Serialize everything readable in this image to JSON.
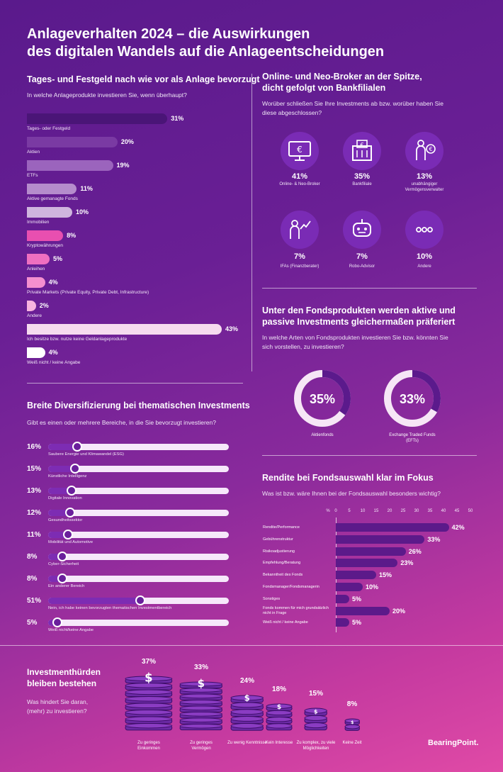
{
  "title_line1": "Anlageverhalten 2024 – die Auswirkungen",
  "title_line2": "des digitalen Wandels auf die Anlageentscheidungen",
  "s1": {
    "title": "Tages- und Festgeld nach wie vor als Anlage bevorzugt",
    "question": "In welche Anlageprodukte investieren Sie, wenn überhaupt?"
  },
  "s2": {
    "title_line1": "Online- und Neo-Broker an der Spitze,",
    "title_line2": "dicht gefolgt von Bankfilialen",
    "question_line1": "Worüber schließen Sie Ihre Investments ab bzw. worüber haben Sie",
    "question_line2": "diese abgeschlossen?"
  },
  "s3": {
    "title_line1": "Unter den Fondsprodukten werden aktive und",
    "title_line2": "passive Investments gleichermaßen präferiert",
    "question_line1": "In welche Arten von Fondsprodukten investieren Sie bzw. könnten Sie",
    "question_line2": "sich vorstellen, zu investieren?"
  },
  "s4": {
    "title": "Breite Diversifizierung bei thematischen Investments",
    "question": "Gibt es einen oder mehrere Bereiche, in die Sie bevorzugt investieren?"
  },
  "s5": {
    "title": "Rendite bei Fondsauswahl klar im Fokus",
    "question": "Was ist bzw. wäre Ihnen bei der Fondsauswahl besonders wichtig?"
  },
  "s6": {
    "title_line1": "Investmenthürden",
    "title_line2": "bleiben bestehen",
    "question_line1": "Was hindert Sie daran,",
    "question_line2": "(mehr) zu investieren?"
  },
  "logo": "BearingPoint.",
  "chart_data": [
    {
      "type": "bar",
      "orientation": "horizontal",
      "title": "Tages- und Festgeld nach wie vor als Anlage bevorzugt",
      "categories": [
        "Tages- oder Festgeld",
        "Aktien",
        "ETFs",
        "Aktive gemanagte Fonds",
        "Immobilien",
        "Kryptowährungen",
        "Anleihen",
        "Private Markets (Private Equity, Private Debt, Infrastructure)",
        "Andere",
        "Ich besitze bzw. nutze keine Geldanlageprodukte",
        "Weiß nicht / keine Angabe"
      ],
      "values": [
        31,
        20,
        19,
        11,
        10,
        8,
        5,
        4,
        2,
        43,
        4
      ],
      "labels": [
        "31%",
        "20%",
        "19%",
        "11%",
        "10%",
        "8%",
        "5%",
        "4%",
        "2%",
        "43%",
        "4%"
      ],
      "colors": [
        "#4a1577",
        "#7a3aa3",
        "#9b64bd",
        "#b58ccc",
        "#cfb5de",
        "#e84fb0",
        "#ef6fc0",
        "#f48fcf",
        "#f8b3df",
        "#f6dbef",
        "#ffffff"
      ]
    },
    {
      "type": "table",
      "title": "Online- und Neo-Broker an der Spitze",
      "items": [
        {
          "label": "Online- & Neo-Broker",
          "value": "41%",
          "icon": "monitor-euro-icon"
        },
        {
          "label": "Bankfiliale",
          "value": "35%",
          "icon": "bank-building-icon"
        },
        {
          "label": "unabhängiger Vermögensverwalter",
          "value": "13%",
          "icon": "person-euro-icon"
        },
        {
          "label": "IFAs (Finanzberater)",
          "value": "7%",
          "icon": "advisor-chart-icon"
        },
        {
          "label": "Robo-Advisor",
          "value": "7%",
          "icon": "robot-icon"
        },
        {
          "label": "Andere",
          "value": "10%",
          "icon": "dots-icon"
        }
      ]
    },
    {
      "type": "pie",
      "title": "Unter den Fondsprodukten werden aktive und passive Investments gleichermaßen präferiert",
      "items": [
        {
          "label": "Aktienfonds",
          "value": 35,
          "text": "35%"
        },
        {
          "label": "Exchange Traded Funds (EFTs)",
          "value": 33,
          "text": "33%"
        }
      ]
    },
    {
      "type": "bar",
      "orientation": "horizontal",
      "title": "Breite Diversifizierung bei thematischen Investments",
      "categories": [
        "Saubere Energie und Klimawandel (ESG)",
        "Künstliche Intelligenz",
        "Digitale Innovation",
        "Gesundheitssektor",
        "Mobilität und Automotive",
        "Cyber-Sicherheit",
        "Ein anderer Bereich",
        "Nein, ich habe keinen bevorzugten thematischen Investmentbereich",
        "Weiß nicht/keine Angabe"
      ],
      "values": [
        16,
        15,
        13,
        12,
        11,
        8,
        8,
        51,
        5
      ],
      "labels": [
        "16%",
        "15%",
        "13%",
        "12%",
        "11%",
        "8%",
        "8%",
        "51%",
        "5%"
      ]
    },
    {
      "type": "bar",
      "orientation": "horizontal",
      "title": "Rendite bei Fondsauswahl klar im Fokus",
      "axis_unit": "%",
      "xticks": [
        0,
        5,
        10,
        15,
        20,
        25,
        30,
        35,
        40,
        45,
        50
      ],
      "xlim": [
        0,
        50
      ],
      "categories": [
        "Rendite/Performance",
        "Gebührenstruktur",
        "Risikoadjustierung",
        "Empfehlung/Beratung",
        "Bekanntheit des Fonds",
        "Fondsmanager/Fondsmanagerin",
        "Sonstiges",
        "Fonds kommen für mich grundsätzlich nicht in Frage",
        "Weiß nicht / keine Angabe"
      ],
      "values": [
        42,
        33,
        26,
        23,
        15,
        10,
        5,
        20,
        5
      ],
      "labels": [
        "42%",
        "33%",
        "26%",
        "23%",
        "15%",
        "10%",
        "5%",
        "20%",
        "5%"
      ]
    },
    {
      "type": "bar",
      "title": "Investmenthürden bleiben bestehen",
      "categories": [
        "Zu geringes Einkommen",
        "Zu geringes Vermögen",
        "Zu wenig Kenntnisse",
        "Kein Interesse",
        "Zu komplex, zu viele Möglichkeiten",
        "Keine Zeit"
      ],
      "values": [
        37,
        33,
        24,
        18,
        15,
        8
      ],
      "labels": [
        "37%",
        "33%",
        "24%",
        "18%",
        "15%",
        "8%"
      ]
    }
  ]
}
